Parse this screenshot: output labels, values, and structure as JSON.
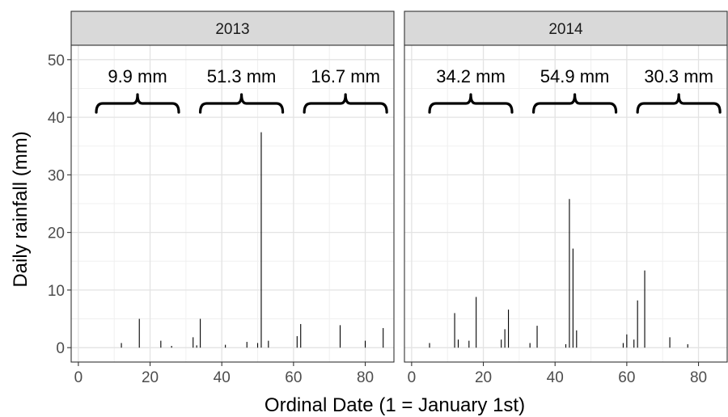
{
  "chart_data": {
    "type": "bar",
    "xlabel": "Ordinal Date (1 = January 1st)",
    "ylabel": "Daily rainfall (mm)",
    "xlim": [
      -2,
      88
    ],
    "ylim": [
      -2.5,
      52.5
    ],
    "x_ticks": [
      0,
      20,
      40,
      60,
      80
    ],
    "y_ticks": [
      0,
      10,
      20,
      30,
      40,
      50
    ],
    "grid": true,
    "panels": [
      {
        "label": "2013",
        "bars": [
          {
            "x": 12,
            "y": 0.8
          },
          {
            "x": 17,
            "y": 5.0
          },
          {
            "x": 23,
            "y": 1.2
          },
          {
            "x": 26,
            "y": 0.3
          },
          {
            "x": 32,
            "y": 1.8
          },
          {
            "x": 33,
            "y": 0.4
          },
          {
            "x": 34,
            "y": 5.0
          },
          {
            "x": 41,
            "y": 0.5
          },
          {
            "x": 47,
            "y": 1.0
          },
          {
            "x": 50,
            "y": 0.8
          },
          {
            "x": 51,
            "y": 37.4
          },
          {
            "x": 53,
            "y": 1.2
          },
          {
            "x": 61,
            "y": 2.0
          },
          {
            "x": 62,
            "y": 4.1
          },
          {
            "x": 73,
            "y": 3.9
          },
          {
            "x": 80,
            "y": 1.2
          },
          {
            "x": 85,
            "y": 3.4
          }
        ],
        "annotations": [
          {
            "text": "9.9 mm",
            "x_start": 5,
            "x_end": 28
          },
          {
            "text": "51.3 mm",
            "x_start": 34,
            "x_end": 57
          },
          {
            "text": "16.7 mm",
            "x_start": 63,
            "x_end": 86
          }
        ]
      },
      {
        "label": "2014",
        "bars": [
          {
            "x": 5,
            "y": 0.8
          },
          {
            "x": 12,
            "y": 6.0
          },
          {
            "x": 13,
            "y": 1.4
          },
          {
            "x": 16,
            "y": 1.2
          },
          {
            "x": 18,
            "y": 8.8
          },
          {
            "x": 25,
            "y": 1.4
          },
          {
            "x": 26,
            "y": 3.2
          },
          {
            "x": 27,
            "y": 6.6
          },
          {
            "x": 33,
            "y": 0.8
          },
          {
            "x": 35,
            "y": 3.8
          },
          {
            "x": 43,
            "y": 0.6
          },
          {
            "x": 44,
            "y": 25.8
          },
          {
            "x": 45,
            "y": 17.2
          },
          {
            "x": 46,
            "y": 3.0
          },
          {
            "x": 59,
            "y": 0.8
          },
          {
            "x": 60,
            "y": 2.3
          },
          {
            "x": 62,
            "y": 1.4
          },
          {
            "x": 63,
            "y": 8.2
          },
          {
            "x": 65,
            "y": 13.4
          },
          {
            "x": 72,
            "y": 1.8
          },
          {
            "x": 77,
            "y": 0.6
          }
        ],
        "annotations": [
          {
            "text": "34.2 mm",
            "x_start": 5,
            "x_end": 28
          },
          {
            "text": "54.9 mm",
            "x_start": 34,
            "x_end": 57
          },
          {
            "text": "30.3 mm",
            "x_start": 63,
            "x_end": 86
          }
        ]
      }
    ]
  }
}
